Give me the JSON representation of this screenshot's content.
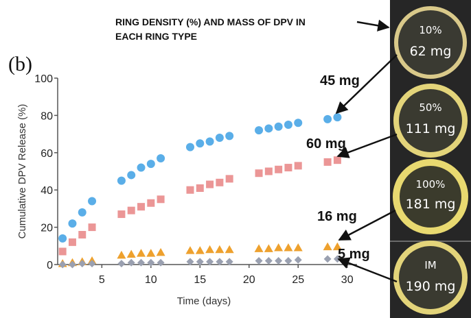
{
  "figure": {
    "panel_label": "(b)",
    "header_line1": "RING DENSITY (%) AND MASS OF DPV IN",
    "header_line2": "EACH RING TYPE"
  },
  "rings": [
    {
      "density": "10%",
      "mass": "62 mg",
      "release_label": "45 mg",
      "series": 0
    },
    {
      "density": "50%",
      "mass": "111 mg",
      "release_label": "60 mg",
      "series": 1
    },
    {
      "density": "100%",
      "mass": "181 mg",
      "release_label": "16 mg",
      "series": 2
    },
    {
      "density": "IM",
      "mass": "190 mg",
      "release_label": "5 mg",
      "series": 3
    }
  ],
  "colors": {
    "series_blue": "#5aaee8",
    "series_red": "#eb9696",
    "series_orange": "#eea12e",
    "series_gray": "#9aa0b0",
    "ring_panel_bg": "#262626",
    "ring_gold": "#d9c98a"
  },
  "chart_data": {
    "type": "scatter",
    "title": "",
    "xlabel": "Time (days)",
    "ylabel": "Cumulative DPV Release (%)",
    "xlim": [
      0.5,
      31
    ],
    "ylim": [
      0,
      100
    ],
    "xticks": [
      5,
      10,
      15,
      20,
      25,
      30
    ],
    "yticks": [
      0,
      20,
      40,
      60,
      80,
      100
    ],
    "grid": false,
    "series": [
      {
        "marker": "circle",
        "color": "#5aaee8",
        "x": [
          1,
          2,
          3,
          4,
          7,
          8,
          9,
          10,
          11,
          14,
          15,
          16,
          17,
          18,
          21,
          22,
          23,
          24,
          25,
          28,
          29
        ],
        "y": [
          14,
          22,
          28,
          34,
          45,
          48,
          52,
          54,
          57,
          63,
          65,
          66,
          68,
          69,
          72,
          73,
          74,
          75,
          76,
          78,
          79
        ]
      },
      {
        "marker": "square",
        "color": "#eb9696",
        "x": [
          1,
          2,
          3,
          4,
          7,
          8,
          9,
          10,
          11,
          14,
          15,
          16,
          17,
          18,
          21,
          22,
          23,
          24,
          25,
          28,
          29
        ],
        "y": [
          7,
          12,
          16,
          20,
          27,
          29,
          31,
          33,
          35,
          40,
          41,
          43,
          44,
          46,
          49,
          50,
          51,
          52,
          53,
          55,
          56
        ]
      },
      {
        "marker": "triangle",
        "color": "#eea12e",
        "x": [
          1,
          2,
          3,
          4,
          7,
          8,
          9,
          10,
          11,
          14,
          15,
          16,
          17,
          18,
          21,
          22,
          23,
          24,
          25,
          28,
          29
        ],
        "y": [
          0.5,
          1,
          1.5,
          2,
          5,
          5.5,
          6,
          6,
          6.5,
          7.5,
          7.5,
          8,
          8,
          8,
          8.5,
          8.5,
          9,
          9,
          9,
          9.5,
          9.5
        ]
      },
      {
        "marker": "diamond",
        "color": "#9aa0b0",
        "x": [
          1,
          2,
          3,
          4,
          7,
          8,
          9,
          10,
          11,
          14,
          15,
          16,
          17,
          18,
          21,
          22,
          23,
          24,
          25,
          28,
          29
        ],
        "y": [
          0,
          0,
          0.5,
          0.5,
          0.5,
          1,
          1,
          1,
          1,
          1.5,
          1.5,
          1.5,
          1.5,
          1.5,
          2,
          2,
          2,
          2,
          2.5,
          3,
          3
        ]
      }
    ]
  }
}
